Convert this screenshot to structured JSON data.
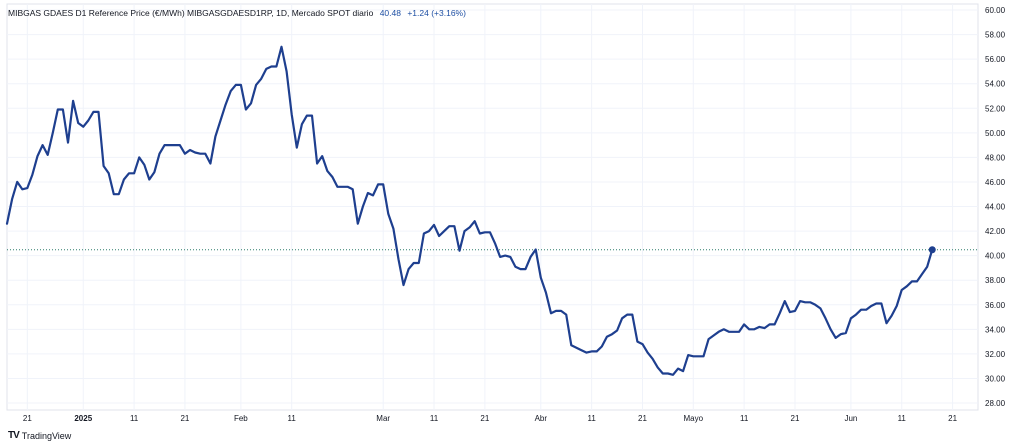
{
  "legend": {
    "title": "MIBGAS GDAES D1 Reference Price (€/MWh) MIBGASGDAESD1RP, 1D, Mercado SPOT diario",
    "last": "40.48",
    "change": "+1.24 (+3.16%)"
  },
  "brand": {
    "logo": "TV",
    "name": "TradingView"
  },
  "colors": {
    "line": "#1e3f8f",
    "grid": "#f0f3fa",
    "last_line": "#2e7d6b"
  },
  "chart_data": {
    "type": "line",
    "title": "MIBGAS GDAES D1 Reference Price (€/MWh) MIBGASGDAESD1RP, 1D, Mercado SPOT diario",
    "xlabel": "",
    "ylabel": "",
    "ylim": [
      28,
      60
    ],
    "xlim": [
      "2024-12-17",
      "2025-06-26"
    ],
    "y_ticks": [
      "60.00",
      "58.00",
      "56.00",
      "54.00",
      "52.00",
      "50.00",
      "48.00",
      "46.00",
      "44.00",
      "42.00",
      "40.00",
      "38.00",
      "36.00",
      "34.00",
      "32.00",
      "30.00",
      "28.00"
    ],
    "x_ticks": [
      {
        "date": "2024-12-21",
        "label": "21",
        "bold": false
      },
      {
        "date": "2025-01-01",
        "label": "2025",
        "bold": true
      },
      {
        "date": "2025-01-11",
        "label": "11",
        "bold": false
      },
      {
        "date": "2025-01-21",
        "label": "21",
        "bold": false
      },
      {
        "date": "2025-02-01",
        "label": "Feb",
        "bold": false
      },
      {
        "date": "2025-02-11",
        "label": "11",
        "bold": false
      },
      {
        "date": "2025-03-01",
        "label": "Mar",
        "bold": false
      },
      {
        "date": "2025-03-11",
        "label": "11",
        "bold": false
      },
      {
        "date": "2025-03-21",
        "label": "21",
        "bold": false
      },
      {
        "date": "2025-04-01",
        "label": "Abr",
        "bold": false
      },
      {
        "date": "2025-04-11",
        "label": "11",
        "bold": false
      },
      {
        "date": "2025-04-21",
        "label": "21",
        "bold": false
      },
      {
        "date": "2025-05-01",
        "label": "Mayo",
        "bold": false
      },
      {
        "date": "2025-05-11",
        "label": "11",
        "bold": false
      },
      {
        "date": "2025-05-21",
        "label": "21",
        "bold": false
      },
      {
        "date": "2025-06-01",
        "label": "Jun",
        "bold": false
      },
      {
        "date": "2025-06-11",
        "label": "11",
        "bold": false
      },
      {
        "date": "2025-06-21",
        "label": "21",
        "bold": false
      }
    ],
    "last_value": 40.48,
    "grid": true,
    "series": [
      {
        "points": [
          [
            "2024-12-17",
            42.6
          ],
          [
            "2024-12-18",
            44.6
          ],
          [
            "2024-12-19",
            46.0
          ],
          [
            "2024-12-20",
            45.4
          ],
          [
            "2024-12-21",
            45.5
          ],
          [
            "2024-12-22",
            46.6
          ],
          [
            "2024-12-23",
            48.1
          ],
          [
            "2024-12-24",
            49.0
          ],
          [
            "2024-12-25",
            48.2
          ],
          [
            "2024-12-26",
            50.0
          ],
          [
            "2024-12-27",
            51.9
          ],
          [
            "2024-12-28",
            51.9
          ],
          [
            "2024-12-29",
            49.2
          ],
          [
            "2024-12-30",
            52.6
          ],
          [
            "2024-12-31",
            50.8
          ],
          [
            "2025-01-01",
            50.5
          ],
          [
            "2025-01-02",
            51.0
          ],
          [
            "2025-01-03",
            51.7
          ],
          [
            "2025-01-04",
            51.7
          ],
          [
            "2025-01-05",
            47.3
          ],
          [
            "2025-01-06",
            46.7
          ],
          [
            "2025-01-07",
            45.0
          ],
          [
            "2025-01-08",
            45.0
          ],
          [
            "2025-01-09",
            46.2
          ],
          [
            "2025-01-10",
            46.7
          ],
          [
            "2025-01-11",
            46.7
          ],
          [
            "2025-01-12",
            48.0
          ],
          [
            "2025-01-13",
            47.4
          ],
          [
            "2025-01-14",
            46.2
          ],
          [
            "2025-01-15",
            46.8
          ],
          [
            "2025-01-16",
            48.3
          ],
          [
            "2025-01-17",
            49.0
          ],
          [
            "2025-01-18",
            49.0
          ],
          [
            "2025-01-19",
            49.0
          ],
          [
            "2025-01-20",
            49.0
          ],
          [
            "2025-01-21",
            48.3
          ],
          [
            "2025-01-22",
            48.6
          ],
          [
            "2025-01-23",
            48.4
          ],
          [
            "2025-01-24",
            48.3
          ],
          [
            "2025-01-25",
            48.3
          ],
          [
            "2025-01-26",
            47.5
          ],
          [
            "2025-01-27",
            49.7
          ],
          [
            "2025-01-28",
            51.0
          ],
          [
            "2025-01-29",
            52.3
          ],
          [
            "2025-01-30",
            53.4
          ],
          [
            "2025-01-31",
            53.9
          ],
          [
            "2025-02-01",
            53.9
          ],
          [
            "2025-02-02",
            51.9
          ],
          [
            "2025-02-03",
            52.4
          ],
          [
            "2025-02-04",
            53.9
          ],
          [
            "2025-02-05",
            54.4
          ],
          [
            "2025-02-06",
            55.2
          ],
          [
            "2025-02-07",
            55.4
          ],
          [
            "2025-02-08",
            55.4
          ],
          [
            "2025-02-09",
            57.0
          ],
          [
            "2025-02-10",
            55.0
          ],
          [
            "2025-02-11",
            51.5
          ],
          [
            "2025-02-12",
            48.8
          ],
          [
            "2025-02-13",
            50.7
          ],
          [
            "2025-02-14",
            51.4
          ],
          [
            "2025-02-15",
            51.4
          ],
          [
            "2025-02-16",
            47.5
          ],
          [
            "2025-02-17",
            48.1
          ],
          [
            "2025-02-18",
            46.9
          ],
          [
            "2025-02-19",
            46.4
          ],
          [
            "2025-02-20",
            45.6
          ],
          [
            "2025-02-21",
            45.6
          ],
          [
            "2025-02-22",
            45.6
          ],
          [
            "2025-02-23",
            45.4
          ],
          [
            "2025-02-24",
            42.6
          ],
          [
            "2025-02-25",
            44.0
          ],
          [
            "2025-02-26",
            45.1
          ],
          [
            "2025-02-27",
            44.9
          ],
          [
            "2025-02-28",
            45.8
          ],
          [
            "2025-03-01",
            45.8
          ],
          [
            "2025-03-02",
            43.4
          ],
          [
            "2025-03-03",
            42.2
          ],
          [
            "2025-03-04",
            39.7
          ],
          [
            "2025-03-05",
            37.6
          ],
          [
            "2025-03-06",
            38.9
          ],
          [
            "2025-03-07",
            39.4
          ],
          [
            "2025-03-08",
            39.4
          ],
          [
            "2025-03-09",
            41.8
          ],
          [
            "2025-03-10",
            42.0
          ],
          [
            "2025-03-11",
            42.5
          ],
          [
            "2025-03-12",
            41.6
          ],
          [
            "2025-03-13",
            42.0
          ],
          [
            "2025-03-14",
            42.4
          ],
          [
            "2025-03-15",
            42.4
          ],
          [
            "2025-03-16",
            40.4
          ],
          [
            "2025-03-17",
            42.0
          ],
          [
            "2025-03-18",
            42.3
          ],
          [
            "2025-03-19",
            42.8
          ],
          [
            "2025-03-20",
            41.8
          ],
          [
            "2025-03-21",
            41.9
          ],
          [
            "2025-03-22",
            41.9
          ],
          [
            "2025-03-23",
            41.0
          ],
          [
            "2025-03-24",
            39.9
          ],
          [
            "2025-03-25",
            40.0
          ],
          [
            "2025-03-26",
            39.9
          ],
          [
            "2025-03-27",
            39.1
          ],
          [
            "2025-03-28",
            38.9
          ],
          [
            "2025-03-29",
            38.9
          ],
          [
            "2025-03-30",
            39.9
          ],
          [
            "2025-03-31",
            40.5
          ],
          [
            "2025-04-01",
            38.2
          ],
          [
            "2025-04-02",
            37.0
          ],
          [
            "2025-04-03",
            35.3
          ],
          [
            "2025-04-04",
            35.5
          ],
          [
            "2025-04-05",
            35.5
          ],
          [
            "2025-04-06",
            35.2
          ],
          [
            "2025-04-07",
            32.7
          ],
          [
            "2025-04-08",
            32.5
          ],
          [
            "2025-04-09",
            32.3
          ],
          [
            "2025-04-10",
            32.1
          ],
          [
            "2025-04-11",
            32.2
          ],
          [
            "2025-04-12",
            32.2
          ],
          [
            "2025-04-13",
            32.6
          ],
          [
            "2025-04-14",
            33.4
          ],
          [
            "2025-04-15",
            33.6
          ],
          [
            "2025-04-16",
            33.9
          ],
          [
            "2025-04-17",
            34.9
          ],
          [
            "2025-04-18",
            35.2
          ],
          [
            "2025-04-19",
            35.2
          ],
          [
            "2025-04-20",
            33.0
          ],
          [
            "2025-04-21",
            32.8
          ],
          [
            "2025-04-22",
            32.1
          ],
          [
            "2025-04-23",
            31.6
          ],
          [
            "2025-04-24",
            30.9
          ],
          [
            "2025-04-25",
            30.4
          ],
          [
            "2025-04-26",
            30.4
          ],
          [
            "2025-04-27",
            30.3
          ],
          [
            "2025-04-28",
            30.8
          ],
          [
            "2025-04-29",
            30.6
          ],
          [
            "2025-04-30",
            31.9
          ],
          [
            "2025-05-01",
            31.8
          ],
          [
            "2025-05-02",
            31.8
          ],
          [
            "2025-05-03",
            31.8
          ],
          [
            "2025-05-04",
            33.2
          ],
          [
            "2025-05-05",
            33.5
          ],
          [
            "2025-05-06",
            33.8
          ],
          [
            "2025-05-07",
            34.0
          ],
          [
            "2025-05-08",
            33.8
          ],
          [
            "2025-05-09",
            33.8
          ],
          [
            "2025-05-10",
            33.8
          ],
          [
            "2025-05-11",
            34.4
          ],
          [
            "2025-05-12",
            34.0
          ],
          [
            "2025-05-13",
            34.0
          ],
          [
            "2025-05-14",
            34.2
          ],
          [
            "2025-05-15",
            34.1
          ],
          [
            "2025-05-16",
            34.4
          ],
          [
            "2025-05-17",
            34.4
          ],
          [
            "2025-05-18",
            35.3
          ],
          [
            "2025-05-19",
            36.3
          ],
          [
            "2025-05-20",
            35.4
          ],
          [
            "2025-05-21",
            35.5
          ],
          [
            "2025-05-22",
            36.3
          ],
          [
            "2025-05-23",
            36.2
          ],
          [
            "2025-05-24",
            36.2
          ],
          [
            "2025-05-25",
            36.0
          ],
          [
            "2025-05-26",
            35.7
          ],
          [
            "2025-05-27",
            34.9
          ],
          [
            "2025-05-28",
            34.0
          ],
          [
            "2025-05-29",
            33.3
          ],
          [
            "2025-05-30",
            33.6
          ],
          [
            "2025-05-31",
            33.7
          ],
          [
            "2025-06-01",
            34.9
          ],
          [
            "2025-06-02",
            35.2
          ],
          [
            "2025-06-03",
            35.6
          ],
          [
            "2025-06-04",
            35.6
          ],
          [
            "2025-06-05",
            35.9
          ],
          [
            "2025-06-06",
            36.1
          ],
          [
            "2025-06-07",
            36.1
          ],
          [
            "2025-06-08",
            34.5
          ],
          [
            "2025-06-09",
            35.1
          ],
          [
            "2025-06-10",
            35.9
          ],
          [
            "2025-06-11",
            37.2
          ],
          [
            "2025-06-12",
            37.5
          ],
          [
            "2025-06-13",
            37.9
          ],
          [
            "2025-06-14",
            37.9
          ],
          [
            "2025-06-15",
            38.5
          ],
          [
            "2025-06-16",
            39.1
          ],
          [
            "2025-06-17",
            40.48
          ]
        ]
      }
    ]
  }
}
